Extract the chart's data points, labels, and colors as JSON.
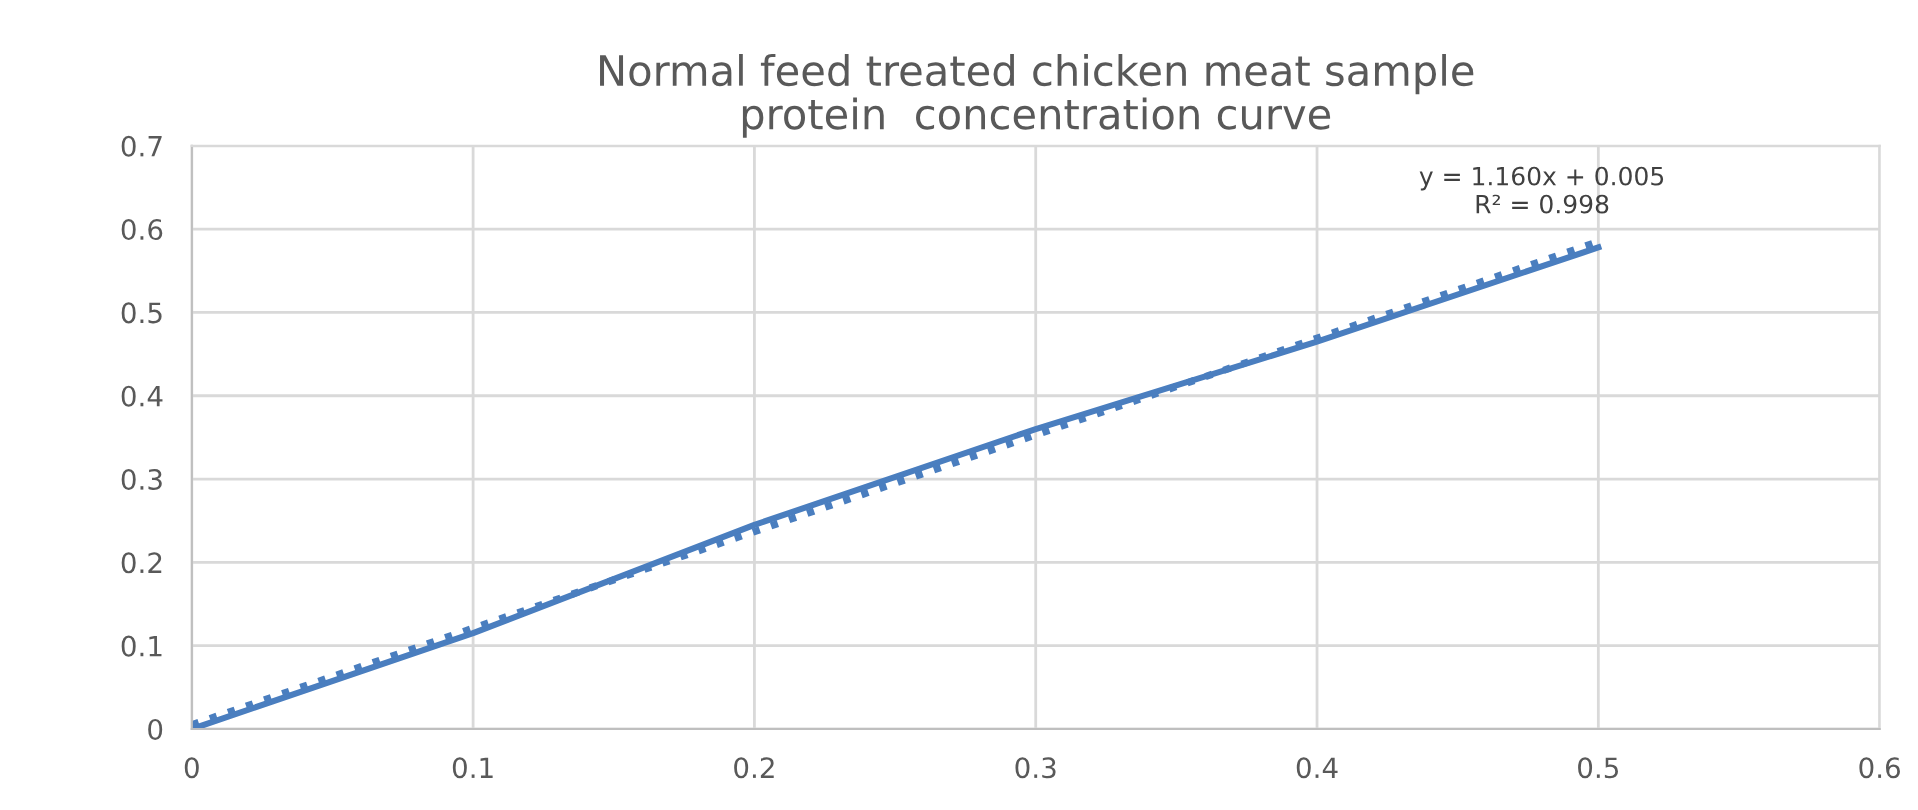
{
  "chart_data": {
    "type": "line",
    "title": "Normal feed treated chicken meat sample\nprotein  concentration curve",
    "x": [
      0,
      0.1,
      0.2,
      0.3,
      0.4,
      0.5
    ],
    "series": [
      {
        "color": "#4a7ebf",
        "values": [
          0,
          0.115,
          0.245,
          0.36,
          0.465,
          0.578
        ],
        "line_style": "solid"
      },
      {
        "type": "line",
        "color": "#4a7ebf",
        "x": [
          0,
          0.5
        ],
        "values": [
          0.005,
          0.585
        ],
        "line_style": "dotted"
      }
    ],
    "xlim": [
      0,
      0.6
    ],
    "xticks": [
      0,
      0.1,
      0.2,
      0.3,
      0.4,
      0.5,
      0.6
    ],
    "ylim": [
      0,
      0.7
    ],
    "yticks": [
      0,
      0.1,
      0.2,
      0.3,
      0.4,
      0.5,
      0.6,
      0.7
    ],
    "grid": true,
    "legend": false,
    "marker": "none",
    "annotations": [
      "y = 1.160x + 0.005\nR² = 0.998"
    ]
  }
}
